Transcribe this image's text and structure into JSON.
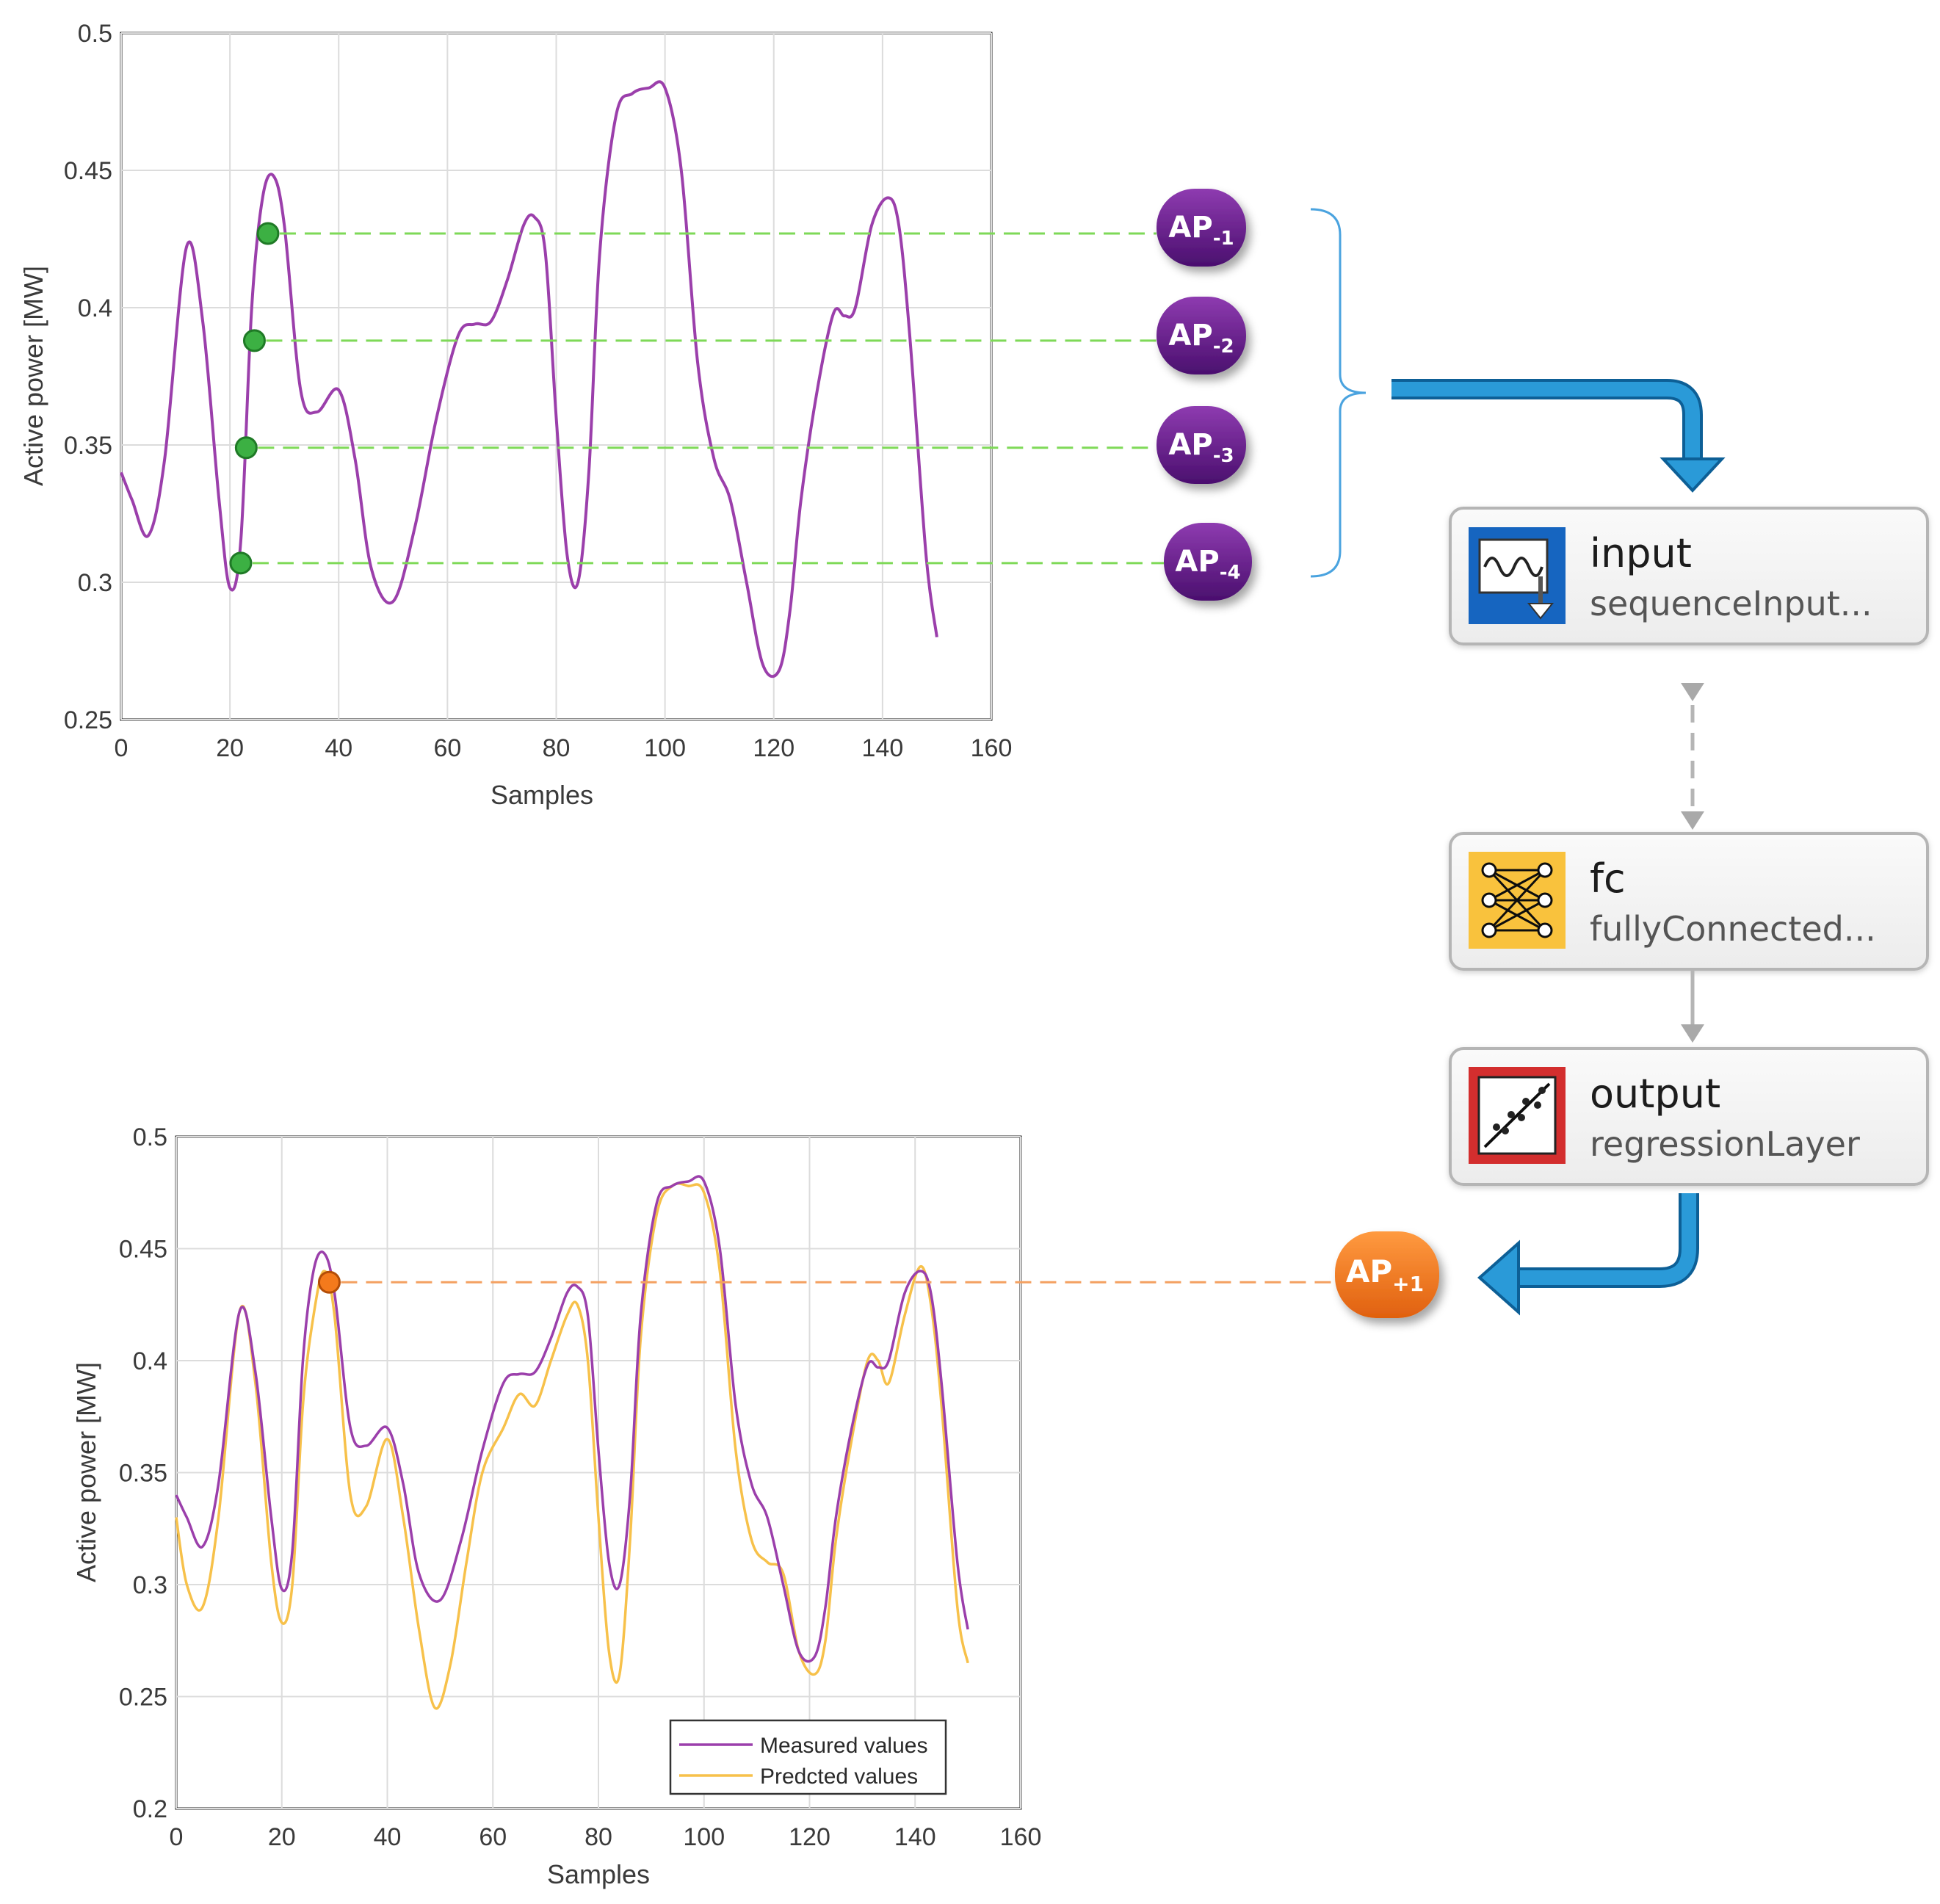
{
  "colors": {
    "measured": "#9b3fab",
    "predicted": "#f7c14a",
    "marker_green": "#3cb043",
    "marker_orange": "#f47a1c",
    "node_purple": "#6a1b9a",
    "node_orange": "#f47a1c",
    "arrow_blue": "#1e88c8",
    "bracket_blue": "#4aa3df",
    "input_icon_bg": "#1565c0",
    "fc_icon_bg": "#f9c23c",
    "output_icon_border": "#d32f2f"
  },
  "top_chart": {
    "ylabel": "Active power [MW]",
    "xlabel": "Samples",
    "xticks": [
      "0",
      "20",
      "40",
      "60",
      "80",
      "100",
      "120",
      "140",
      "160"
    ],
    "yticks": [
      "0.25",
      "0.3",
      "0.35",
      "0.4",
      "0.45",
      "0.5"
    ]
  },
  "bottom_chart": {
    "ylabel": "Active power [MW]",
    "xlabel": "Samples",
    "xticks": [
      "0",
      "20",
      "40",
      "60",
      "80",
      "100",
      "120",
      "140",
      "160"
    ],
    "yticks": [
      "0.2",
      "0.25",
      "0.3",
      "0.35",
      "0.4",
      "0.45",
      "0.5"
    ],
    "legend": [
      "Measured values",
      "Predcted values"
    ]
  },
  "nodes": {
    "ap_minus_1": {
      "base": "AP",
      "sub": "-1"
    },
    "ap_minus_2": {
      "base": "AP",
      "sub": "-2"
    },
    "ap_minus_3": {
      "base": "AP",
      "sub": "-3"
    },
    "ap_minus_4": {
      "base": "AP",
      "sub": "-4"
    },
    "ap_plus_1": {
      "base": "AP",
      "sub": "+1"
    }
  },
  "layers": [
    {
      "title": "input",
      "subtitle": "sequenceInput...",
      "icon": "sequence-input-icon"
    },
    {
      "title": "fc",
      "subtitle": "fullyConnected...",
      "icon": "fully-connected-icon"
    },
    {
      "title": "output",
      "subtitle": "regressionLayer",
      "icon": "regression-icon"
    }
  ],
  "chart_data": [
    {
      "type": "line",
      "title": "",
      "xlabel": "Samples",
      "ylabel": "Active power [MW]",
      "xlim": [
        0,
        160
      ],
      "ylim": [
        0.25,
        0.5
      ],
      "grid": true,
      "series": [
        {
          "color": "#9b3fab",
          "x": [
            0,
            2,
            5,
            8,
            12,
            15,
            18,
            20,
            22,
            24,
            26,
            28,
            30,
            33,
            36,
            40,
            43,
            46,
            50,
            54,
            58,
            62,
            65,
            68,
            71,
            74,
            76,
            78,
            80,
            82,
            84,
            86,
            88,
            91,
            94,
            97,
            100,
            103,
            106,
            109,
            112,
            115,
            118,
            121,
            123,
            125,
            128,
            131,
            133,
            135,
            138,
            141,
            143,
            145,
            148,
            150
          ],
          "y": [
            0.34,
            0.33,
            0.317,
            0.345,
            0.422,
            0.395,
            0.33,
            0.298,
            0.315,
            0.4,
            0.44,
            0.448,
            0.43,
            0.37,
            0.362,
            0.37,
            0.345,
            0.305,
            0.293,
            0.32,
            0.36,
            0.39,
            0.394,
            0.395,
            0.41,
            0.43,
            0.433,
            0.42,
            0.36,
            0.31,
            0.3,
            0.34,
            0.42,
            0.47,
            0.478,
            0.48,
            0.48,
            0.45,
            0.38,
            0.345,
            0.33,
            0.3,
            0.27,
            0.268,
            0.29,
            0.33,
            0.37,
            0.398,
            0.397,
            0.4,
            0.43,
            0.44,
            0.43,
            0.39,
            0.31,
            0.28
          ]
        }
      ],
      "points": [
        {
          "label": "AP-1",
          "x": 27,
          "y": 0.427
        },
        {
          "label": "AP-2",
          "x": 24.5,
          "y": 0.388
        },
        {
          "label": "AP-3",
          "x": 23,
          "y": 0.349
        },
        {
          "label": "AP-4",
          "x": 22,
          "y": 0.307
        }
      ]
    },
    {
      "type": "line",
      "title": "",
      "xlabel": "Samples",
      "ylabel": "Active power [MW]",
      "xlim": [
        0,
        160
      ],
      "ylim": [
        0.2,
        0.5
      ],
      "grid": true,
      "legend_position": "bottom-right",
      "series": [
        {
          "name": "Measured values",
          "color": "#9b3fab",
          "x": [
            0,
            2,
            5,
            8,
            12,
            15,
            18,
            20,
            22,
            24,
            26,
            28,
            30,
            33,
            36,
            40,
            43,
            46,
            50,
            54,
            58,
            62,
            65,
            68,
            71,
            74,
            76,
            78,
            80,
            82,
            84,
            86,
            88,
            91,
            94,
            97,
            100,
            103,
            106,
            109,
            112,
            115,
            118,
            121,
            123,
            125,
            128,
            131,
            133,
            135,
            138,
            141,
            143,
            145,
            148,
            150
          ],
          "y": [
            0.34,
            0.33,
            0.317,
            0.345,
            0.422,
            0.395,
            0.33,
            0.298,
            0.315,
            0.4,
            0.44,
            0.448,
            0.43,
            0.37,
            0.362,
            0.37,
            0.345,
            0.305,
            0.293,
            0.32,
            0.36,
            0.39,
            0.394,
            0.395,
            0.41,
            0.43,
            0.433,
            0.42,
            0.36,
            0.31,
            0.3,
            0.34,
            0.42,
            0.47,
            0.478,
            0.48,
            0.48,
            0.45,
            0.38,
            0.345,
            0.33,
            0.3,
            0.27,
            0.268,
            0.29,
            0.33,
            0.37,
            0.398,
            0.397,
            0.4,
            0.43,
            0.44,
            0.43,
            0.39,
            0.31,
            0.28
          ]
        },
        {
          "name": "Predcted values",
          "color": "#f7c14a",
          "x": [
            0,
            2,
            5,
            8,
            12,
            15,
            18,
            20,
            22,
            24,
            26,
            28,
            30,
            33,
            36,
            40,
            43,
            46,
            49,
            52,
            55,
            58,
            62,
            65,
            68,
            71,
            74,
            76,
            78,
            80,
            82,
            84,
            86,
            88,
            91,
            94,
            97,
            100,
            103,
            106,
            109,
            112,
            115,
            118,
            121,
            123,
            125,
            128,
            131,
            133,
            135,
            138,
            141,
            143,
            145,
            148,
            150
          ],
          "y": [
            0.33,
            0.3,
            0.29,
            0.33,
            0.422,
            0.39,
            0.31,
            0.283,
            0.3,
            0.38,
            0.42,
            0.44,
            0.42,
            0.34,
            0.335,
            0.365,
            0.33,
            0.28,
            0.245,
            0.265,
            0.31,
            0.35,
            0.37,
            0.385,
            0.38,
            0.4,
            0.42,
            0.425,
            0.4,
            0.33,
            0.27,
            0.26,
            0.32,
            0.41,
            0.465,
            0.478,
            0.478,
            0.475,
            0.44,
            0.36,
            0.32,
            0.31,
            0.305,
            0.27,
            0.26,
            0.275,
            0.32,
            0.365,
            0.4,
            0.4,
            0.39,
            0.42,
            0.442,
            0.425,
            0.38,
            0.29,
            0.265
          ]
        }
      ],
      "points": [
        {
          "label": "AP+1",
          "x": 29,
          "y": 0.435
        }
      ]
    }
  ]
}
